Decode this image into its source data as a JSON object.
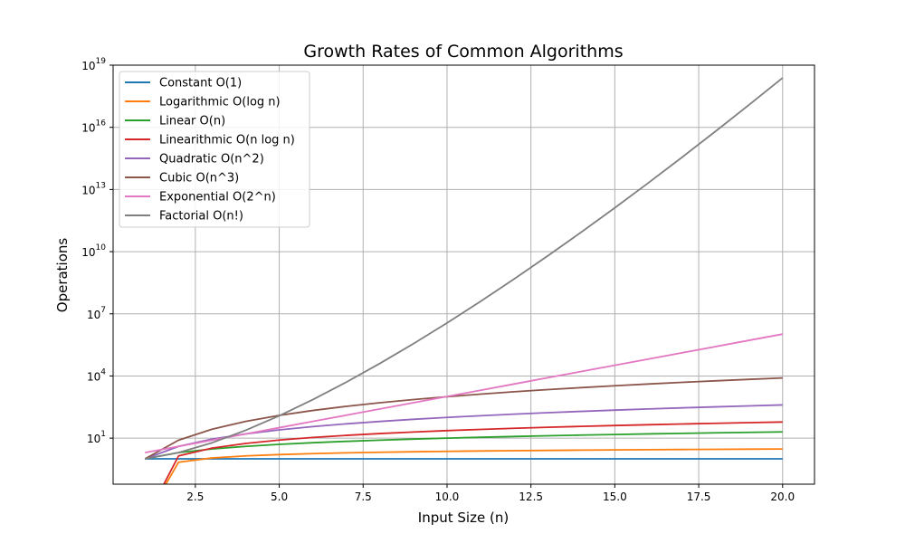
{
  "chart_data": {
    "type": "line",
    "title": "Growth Rates of Common Algorithms",
    "xlabel": "Input Size (n)",
    "ylabel": "Operations",
    "x_ticks": [
      "2.5",
      "5.0",
      "7.5",
      "10.0",
      "12.5",
      "15.0",
      "17.5",
      "20.0"
    ],
    "y_ticks": [
      {
        "base": "10",
        "exp": "1"
      },
      {
        "base": "10",
        "exp": "4"
      },
      {
        "base": "10",
        "exp": "7"
      },
      {
        "base": "10",
        "exp": "10"
      },
      {
        "base": "10",
        "exp": "13"
      },
      {
        "base": "10",
        "exp": "16"
      },
      {
        "base": "10",
        "exp": "19"
      }
    ],
    "xlim": [
      0.05,
      20.95
    ],
    "ylim": [
      0.06,
      1e+19
    ],
    "yscale": "log",
    "grid": true,
    "legend_position": "top-left",
    "x": [
      1,
      2,
      3,
      4,
      5,
      6,
      7,
      8,
      9,
      10,
      11,
      12,
      13,
      14,
      15,
      16,
      17,
      18,
      19,
      20
    ],
    "series": [
      {
        "name": "Constant O(1)",
        "color": "#1f77b4",
        "values": [
          1,
          1,
          1,
          1,
          1,
          1,
          1,
          1,
          1,
          1,
          1,
          1,
          1,
          1,
          1,
          1,
          1,
          1,
          1,
          1
        ]
      },
      {
        "name": "Logarithmic O(log n)",
        "color": "#ff7f0e",
        "values": [
          0,
          0.69,
          1.1,
          1.39,
          1.61,
          1.79,
          1.95,
          2.08,
          2.2,
          2.3,
          2.4,
          2.48,
          2.56,
          2.64,
          2.71,
          2.77,
          2.83,
          2.89,
          2.94,
          3.0
        ]
      },
      {
        "name": "Linear O(n)",
        "color": "#2ca02c",
        "values": [
          1,
          2,
          3,
          4,
          5,
          6,
          7,
          8,
          9,
          10,
          11,
          12,
          13,
          14,
          15,
          16,
          17,
          18,
          19,
          20
        ]
      },
      {
        "name": "Linearithmic O(n log n)",
        "color": "#d62728",
        "values": [
          0,
          1.39,
          3.3,
          5.55,
          8.05,
          10.75,
          13.62,
          16.64,
          19.78,
          23.03,
          26.38,
          29.82,
          33.34,
          36.95,
          40.62,
          44.36,
          48.16,
          52.03,
          55.94,
          59.91
        ]
      },
      {
        "name": "Quadratic O(n^2)",
        "color": "#9467bd",
        "values": [
          1,
          4,
          9,
          16,
          25,
          36,
          49,
          64,
          81,
          100,
          121,
          144,
          169,
          196,
          225,
          256,
          289,
          324,
          361,
          400
        ]
      },
      {
        "name": "Cubic O(n^3)",
        "color": "#8c564b",
        "values": [
          1,
          8,
          27,
          64,
          125,
          216,
          343,
          512,
          729,
          1000,
          1331,
          1728,
          2197,
          2744,
          3375,
          4096,
          4913,
          5832,
          6859,
          8000
        ]
      },
      {
        "name": "Exponential O(2^n)",
        "color": "#e377c2",
        "values": [
          2,
          4,
          8,
          16,
          32,
          64,
          128,
          256,
          512,
          1024,
          2048,
          4096,
          8192,
          16384,
          32768,
          65536,
          131072,
          262144,
          524288,
          1048576
        ]
      },
      {
        "name": "Factorial O(n!)",
        "color": "#7f7f7f",
        "values": [
          1,
          2,
          6,
          24,
          120,
          720,
          5040,
          40320,
          362880,
          3628800,
          39916800,
          479001600,
          6227020800,
          87178291200,
          1307674368000,
          20922789888000,
          355687428096000,
          6402373705728000,
          121645100408832000,
          2432902008176640000
        ]
      }
    ]
  }
}
